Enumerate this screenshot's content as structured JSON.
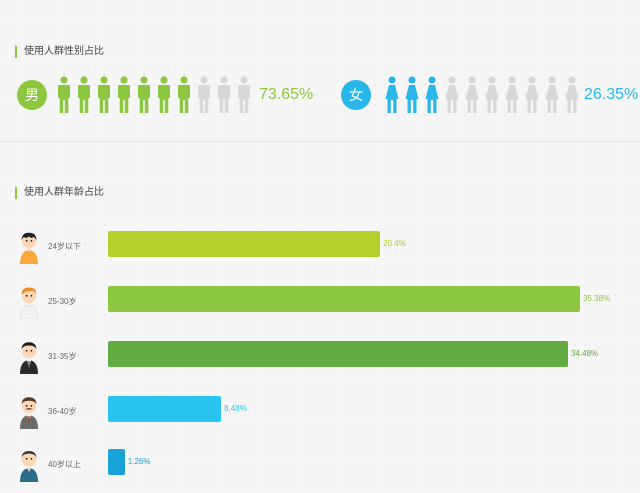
{
  "gender_section": {
    "title": "使用人群性别占比",
    "male": {
      "label": "男",
      "percent": "73.65%",
      "share": 73.65,
      "icon": "male-person-icon",
      "color": "#8dc63f"
    },
    "female": {
      "label": "女",
      "percent": "26.35%",
      "share": 26.35,
      "icon": "female-person-icon",
      "color": "#29b6e8"
    },
    "figures_per_row": 10,
    "inactive_color": "#d8d8d8"
  },
  "age_section": {
    "title": "使用人群年龄占比"
  },
  "chart_data": {
    "type": "bar",
    "orientation": "horizontal",
    "categories": [
      "24岁以下",
      "25-30岁",
      "31-35岁",
      "36-40岁",
      "40岁以上"
    ],
    "values": [
      20.4,
      35.38,
      34.48,
      8.48,
      1.26
    ],
    "value_labels": [
      "20.4%",
      "35.38%",
      "34.48%",
      "8.48%",
      "1.26%"
    ],
    "colors": [
      "#b5cf2b",
      "#8dc63f",
      "#62ab41",
      "#29c4f0",
      "#1aa3d8"
    ],
    "avatars": [
      "boy-avatar-icon",
      "young-man-avatar-icon",
      "suited-man-avatar-icon",
      "mustache-man-avatar-icon",
      "older-man-avatar-icon"
    ],
    "xlim": [
      0,
      35.38
    ],
    "grid": false,
    "legend": "none"
  }
}
